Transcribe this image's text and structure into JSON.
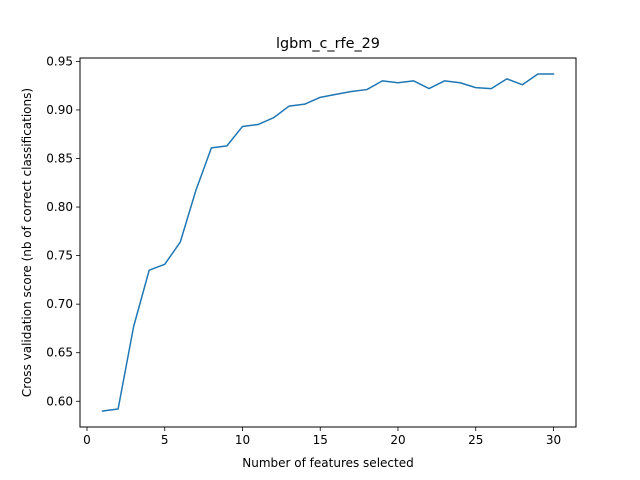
{
  "chart_data": {
    "type": "line",
    "title": "lgbm_c_rfe_29",
    "xlabel": "Number of features selected",
    "ylabel": "Cross validation score (nb of correct classifications)",
    "xlim": [
      -0.45,
      31.45
    ],
    "ylim": [
      0.5735,
      0.9535
    ],
    "xticks": [
      0,
      5,
      10,
      15,
      20,
      25,
      30
    ],
    "xtick_labels": [
      "0",
      "5",
      "10",
      "15",
      "20",
      "25",
      "30"
    ],
    "yticks": [
      0.6,
      0.65,
      0.7,
      0.75,
      0.8,
      0.85,
      0.9,
      0.95
    ],
    "ytick_labels": [
      "0.60",
      "0.65",
      "0.70",
      "0.75",
      "0.80",
      "0.85",
      "0.90",
      "0.95"
    ],
    "grid": false,
    "series": [
      {
        "color": "#1f77b4",
        "x": [
          1,
          2,
          3,
          4,
          5,
          6,
          7,
          8,
          9,
          10,
          11,
          12,
          13,
          14,
          15,
          16,
          17,
          18,
          19,
          20,
          21,
          22,
          23,
          24,
          25,
          26,
          27,
          28,
          29,
          30
        ],
        "values": [
          0.59,
          0.592,
          0.677,
          0.735,
          0.741,
          0.764,
          0.817,
          0.861,
          0.863,
          0.883,
          0.885,
          0.892,
          0.904,
          0.906,
          0.913,
          0.916,
          0.919,
          0.921,
          0.93,
          0.928,
          0.93,
          0.922,
          0.93,
          0.928,
          0.923,
          0.922,
          0.932,
          0.926,
          0.937,
          0.937
        ]
      }
    ]
  }
}
